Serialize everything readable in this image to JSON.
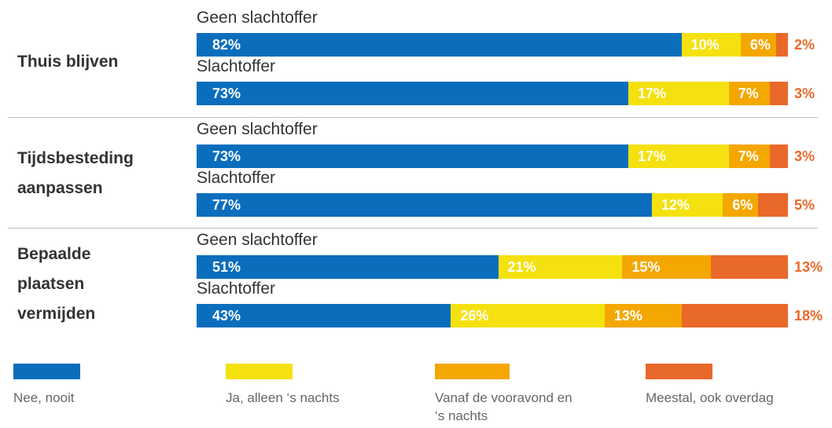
{
  "chart_data": {
    "type": "stacked-bar-horizontal",
    "groups": [
      {
        "label": "Thuis blijven",
        "categories": [
          "Geen slachtoffer",
          "Slachtoffer"
        ]
      },
      {
        "label": "Tijdsbesteding aanpassen",
        "categories": [
          "Geen slachtoffer",
          "Slachtoffer"
        ]
      },
      {
        "label": "Bepaalde plaatsen vermijden",
        "categories": [
          "Geen slachtoffer",
          "Slachtoffer"
        ]
      }
    ],
    "xlim": [
      0,
      100
    ],
    "series": [
      {
        "name": "Nee, nooit",
        "color": "#0a6ebd",
        "values": [
          82,
          73,
          73,
          77,
          51,
          43
        ],
        "value_labels": [
          "82%",
          "73%",
          "73%",
          "77%",
          "51%",
          "43%"
        ]
      },
      {
        "name": "Ja, alleen ‘s nachts",
        "color": "#f5e10f",
        "values": [
          10,
          17,
          17,
          12,
          21,
          26
        ],
        "value_labels": [
          "10%",
          "17%",
          "17%",
          "12%",
          "21%",
          "26%"
        ]
      },
      {
        "name": "Vanaf de vooravond en ‘s nachts",
        "color": "#f4a700",
        "values": [
          6,
          7,
          7,
          6,
          15,
          13
        ],
        "value_labels": [
          "6%",
          "7%",
          "7%",
          "6%",
          "15%",
          "13%"
        ]
      },
      {
        "name": "Meestal, ook overdag",
        "color": "#e8692a",
        "values": [
          2,
          3,
          3,
          5,
          13,
          18
        ],
        "value_labels": [
          "2%",
          "3%",
          "3%",
          "5%",
          "13%",
          "18%"
        ]
      }
    ]
  }
}
